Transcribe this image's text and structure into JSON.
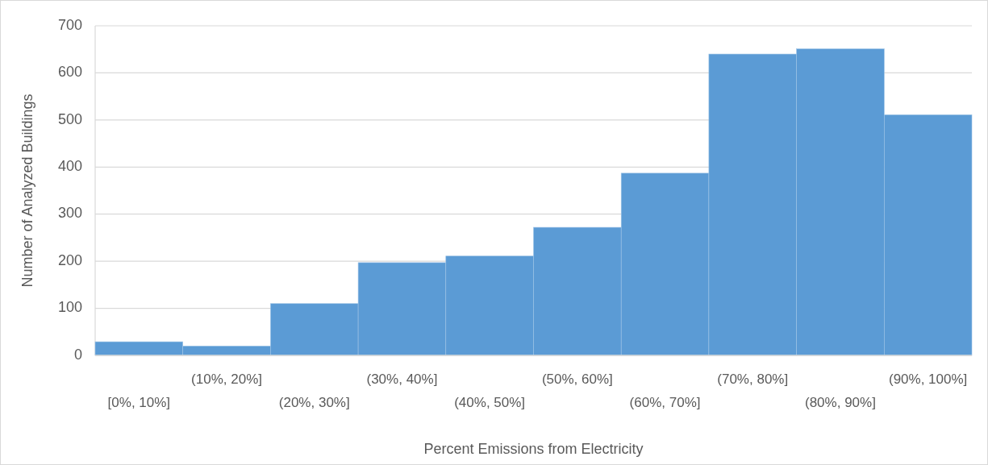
{
  "chart_data": {
    "type": "bar",
    "xlabel": "Percent Emissions from Electricity",
    "ylabel": "Number of Analyzed Buildings",
    "categories": [
      "[0%, 10%]",
      "(10%, 20%]",
      "(20%, 30%]",
      "(30%, 40%]",
      "(40%, 50%]",
      "(50%, 60%]",
      "(60%, 70%]",
      "(70%, 80%]",
      "(80%, 90%]",
      "(90%, 100%]"
    ],
    "values": [
      29,
      20,
      110,
      197,
      211,
      272,
      387,
      640,
      651,
      511
    ],
    "color": "#5b9bd5",
    "ylim": [
      0,
      700
    ],
    "yticks": [
      0,
      100,
      200,
      300,
      400,
      500,
      600,
      700
    ],
    "grid": "y"
  }
}
